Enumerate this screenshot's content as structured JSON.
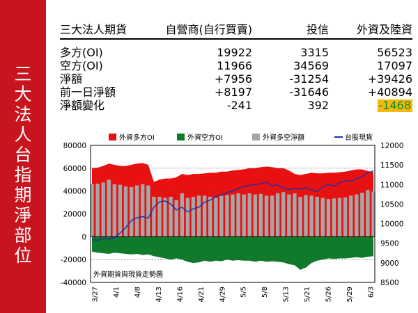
{
  "sidebar": {
    "title": "三大法人台指期淨部位"
  },
  "summary": {
    "headers": [
      "三大法人期貨",
      "自營商(自行買賣)",
      "投信",
      "外資及陸資"
    ],
    "rows": [
      [
        "多方(OI)",
        "19922",
        "3315",
        "56523"
      ],
      [
        "空方(OI)",
        "11966",
        "34569",
        "17097"
      ],
      [
        "淨額",
        "+7956",
        "-31254",
        "+39426"
      ],
      [
        "前一日淨額",
        "+8197",
        "-31646",
        "+40894"
      ],
      [
        "淨額變化",
        "-241",
        "392",
        "-1468"
      ]
    ],
    "highlight_color": "#f5b80c",
    "highlight_text_color": "#0a8a2e"
  },
  "chart_data": {
    "type": "bar",
    "legend": [
      {
        "label": "外資多方OI",
        "color": "#e81010"
      },
      {
        "label": "外資空方OI",
        "color": "#0e7a2a"
      },
      {
        "label": "外資多空淨額",
        "color": "#a6a6a6"
      },
      {
        "label": "台股現貨",
        "color": "#1a2fa8"
      }
    ],
    "annotation": "外資期貨與現貨走勢圖",
    "xticks": [
      "3/27",
      "4/1",
      "4/8",
      "4/13",
      "4/16",
      "4/21",
      "4/29",
      "5/5",
      "5/8",
      "5/13",
      "5/21",
      "5/26",
      "5/29",
      "6/3"
    ],
    "left_axis": {
      "min": -40000,
      "max": 80000,
      "step": 20000
    },
    "right_axis": {
      "min": 8500,
      "max": 12000,
      "step": 500
    },
    "series": [
      {
        "name": "外資多方OI",
        "values": [
          60000,
          60500,
          62000,
          64000,
          63000,
          62000,
          62000,
          63000,
          64000,
          64500,
          63000,
          48000,
          50000,
          51000,
          51000,
          52000,
          55000,
          54000,
          55000,
          55000,
          55500,
          56000,
          56000,
          57000,
          57000,
          58000,
          58500,
          59000,
          60000,
          60000,
          61000,
          61500,
          61000,
          60000,
          60000,
          58000,
          55000,
          54000,
          55000,
          56000,
          55500,
          55500,
          56000,
          56000,
          56500,
          57000,
          58000,
          59000,
          59000,
          57500,
          56523
        ]
      },
      {
        "name": "外資空方OI",
        "values": [
          -13000,
          -14000,
          -14500,
          -15000,
          -14000,
          -14500,
          -15000,
          -15500,
          -15000,
          -16000,
          -15500,
          -17000,
          -18000,
          -19000,
          -20000,
          -19000,
          -20000,
          -22000,
          -23000,
          -22500,
          -21000,
          -22000,
          -21000,
          -21500,
          -20000,
          -21000,
          -20500,
          -21000,
          -21000,
          -22000,
          -21000,
          -22000,
          -21500,
          -22000,
          -22500,
          -24000,
          -25000,
          -29000,
          -27000,
          -23000,
          -21000,
          -20000,
          -19000,
          -19500,
          -19000,
          -19000,
          -18500,
          -18000,
          -18500,
          -17500,
          -17097
        ]
      },
      {
        "name": "外資多空淨額",
        "values": [
          46000,
          46500,
          47500,
          50000,
          46000,
          45500,
          44000,
          43500,
          45000,
          46000,
          45000,
          35000,
          35000,
          34000,
          35000,
          32000,
          38000,
          34000,
          35000,
          36000,
          36000,
          35000,
          34000,
          36000,
          36500,
          37000,
          38000,
          37000,
          38000,
          37000,
          37500,
          36000,
          36000,
          38000,
          39000,
          37000,
          38000,
          35000,
          36500,
          36000,
          35000,
          34000,
          33000,
          33500,
          34000,
          34500,
          36000,
          37000,
          38500,
          40894,
          39426
        ]
      },
      {
        "name": "台股現貨",
        "values": [
          9600,
          9570,
          9620,
          9610,
          9650,
          9760,
          9900,
          10080,
          10150,
          10180,
          10140,
          10420,
          10560,
          10580,
          10500,
          10350,
          10420,
          10300,
          10380,
          10420,
          10550,
          10600,
          10700,
          10720,
          10800,
          10830,
          10900,
          10950,
          10980,
          11000,
          11020,
          11060,
          10960,
          11000,
          10900,
          10870,
          10900,
          10880,
          10920,
          10860,
          10820,
          10950,
          11000,
          10960,
          11050,
          11100,
          11080,
          11150,
          11200,
          11300,
          11350
        ]
      }
    ]
  }
}
